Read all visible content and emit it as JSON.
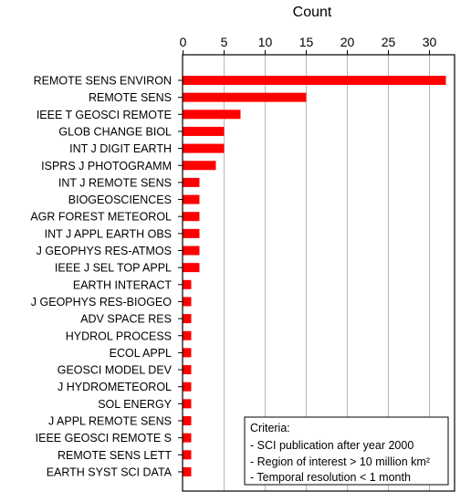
{
  "chart_data": {
    "type": "bar",
    "orientation": "horizontal",
    "xlabel": "Count",
    "xlabel_position": "top",
    "xlim": [
      0,
      32
    ],
    "xticks": [
      0,
      5,
      10,
      15,
      20,
      25,
      30
    ],
    "grid": "vertical",
    "bar_color": "#ff0000",
    "categories": [
      "REMOTE SENS ENVIRON",
      "REMOTE SENS",
      "IEEE T GEOSCI REMOTE",
      "GLOB CHANGE BIOL",
      "INT J DIGIT EARTH",
      "ISPRS J PHOTOGRAMM",
      "INT J REMOTE SENS",
      "BIOGEOSCIENCES",
      "AGR FOREST METEOROL",
      "INT J APPL EARTH OBS",
      "J GEOPHYS RES-ATMOS",
      "IEEE J SEL TOP APPL",
      "EARTH INTERACT",
      "J GEOPHYS RES-BIOGEO",
      "ADV SPACE RES",
      "HYDROL PROCESS",
      "ECOL APPL",
      "GEOSCI MODEL DEV",
      "J HYDROMETEOROL",
      "SOL ENERGY",
      "J APPL REMOTE SENS",
      "IEEE GEOSCI REMOTE S",
      "REMOTE SENS LETT",
      "EARTH SYST SCI DATA"
    ],
    "values": [
      32,
      15,
      7,
      5,
      5,
      4,
      2,
      2,
      2,
      2,
      2,
      2,
      1,
      1,
      1,
      1,
      1,
      1,
      1,
      1,
      1,
      1,
      1,
      1
    ]
  },
  "legend": {
    "title": "Criteria:",
    "items": [
      "- SCI publication after year 2000",
      "- Region of interest > 10 million km²",
      "- Temporal resolution < 1 month"
    ]
  }
}
